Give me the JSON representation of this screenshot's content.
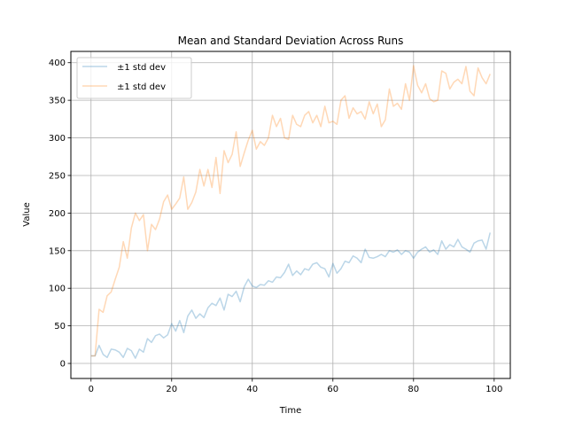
{
  "chart_data": {
    "type": "line",
    "title": "Mean and Standard Deviation Across Runs",
    "xlabel": "Time",
    "ylabel": "Value",
    "xlim": [
      -5,
      104
    ],
    "ylim": [
      -20,
      415
    ],
    "grid": true,
    "legend_position": "top-left",
    "x_ticks": [
      0,
      20,
      40,
      60,
      80,
      100
    ],
    "y_ticks": [
      0,
      50,
      100,
      150,
      200,
      250,
      300,
      350,
      400
    ],
    "x": [
      0,
      1,
      2,
      3,
      4,
      5,
      6,
      7,
      8,
      9,
      10,
      11,
      12,
      13,
      14,
      15,
      16,
      17,
      18,
      19,
      20,
      21,
      22,
      23,
      24,
      25,
      26,
      27,
      28,
      29,
      30,
      31,
      32,
      33,
      34,
      35,
      36,
      37,
      38,
      39,
      40,
      41,
      42,
      43,
      44,
      45,
      46,
      47,
      48,
      49,
      50,
      51,
      52,
      53,
      54,
      55,
      56,
      57,
      58,
      59,
      60,
      61,
      62,
      63,
      64,
      65,
      66,
      67,
      68,
      69,
      70,
      71,
      72,
      73,
      74,
      75,
      76,
      77,
      78,
      79,
      80,
      81,
      82,
      83,
      84,
      85,
      86,
      87,
      88,
      89,
      90,
      91,
      92,
      93,
      94,
      95,
      96,
      97,
      98,
      99
    ],
    "series": [
      {
        "name": "±1 std dev",
        "color": "#1f77b4",
        "opacity": 0.3,
        "values": [
          10,
          10,
          24,
          12,
          8,
          19,
          18,
          15,
          8,
          20,
          17,
          7,
          19,
          15,
          33,
          28,
          37,
          39,
          34,
          38,
          53,
          43,
          57,
          41,
          63,
          71,
          60,
          66,
          61,
          74,
          80,
          77,
          87,
          71,
          92,
          89,
          96,
          82,
          102,
          112,
          103,
          101,
          105,
          104,
          110,
          108,
          115,
          114,
          121,
          132,
          117,
          123,
          118,
          126,
          124,
          132,
          134,
          128,
          126,
          115,
          133,
          120,
          126,
          136,
          134,
          143,
          140,
          134,
          152,
          141,
          140,
          142,
          145,
          142,
          150,
          148,
          151,
          145,
          150,
          148,
          140,
          148,
          152,
          155,
          148,
          151,
          145,
          163,
          152,
          158,
          155,
          165,
          155,
          152,
          148,
          160,
          163,
          164,
          152,
          174
        ]
      },
      {
        "name": "±1 std dev",
        "color": "#ff7f0e",
        "opacity": 0.3,
        "values": [
          10,
          10,
          72,
          68,
          90,
          95,
          112,
          128,
          162,
          140,
          180,
          200,
          190,
          198,
          150,
          185,
          178,
          192,
          215,
          224,
          205,
          212,
          220,
          248,
          205,
          214,
          228,
          258,
          236,
          258,
          234,
          274,
          226,
          283,
          267,
          278,
          308,
          262,
          280,
          297,
          310,
          285,
          295,
          290,
          300,
          330,
          315,
          326,
          300,
          298,
          330,
          318,
          315,
          330,
          335,
          320,
          330,
          315,
          342,
          320,
          322,
          318,
          350,
          356,
          326,
          340,
          332,
          335,
          325,
          348,
          332,
          345,
          315,
          324,
          365,
          342,
          346,
          338,
          372,
          350,
          396,
          370,
          360,
          372,
          352,
          348,
          350,
          389,
          386,
          365,
          374,
          378,
          372,
          395,
          362,
          356,
          393,
          380,
          372,
          385
        ]
      }
    ]
  }
}
